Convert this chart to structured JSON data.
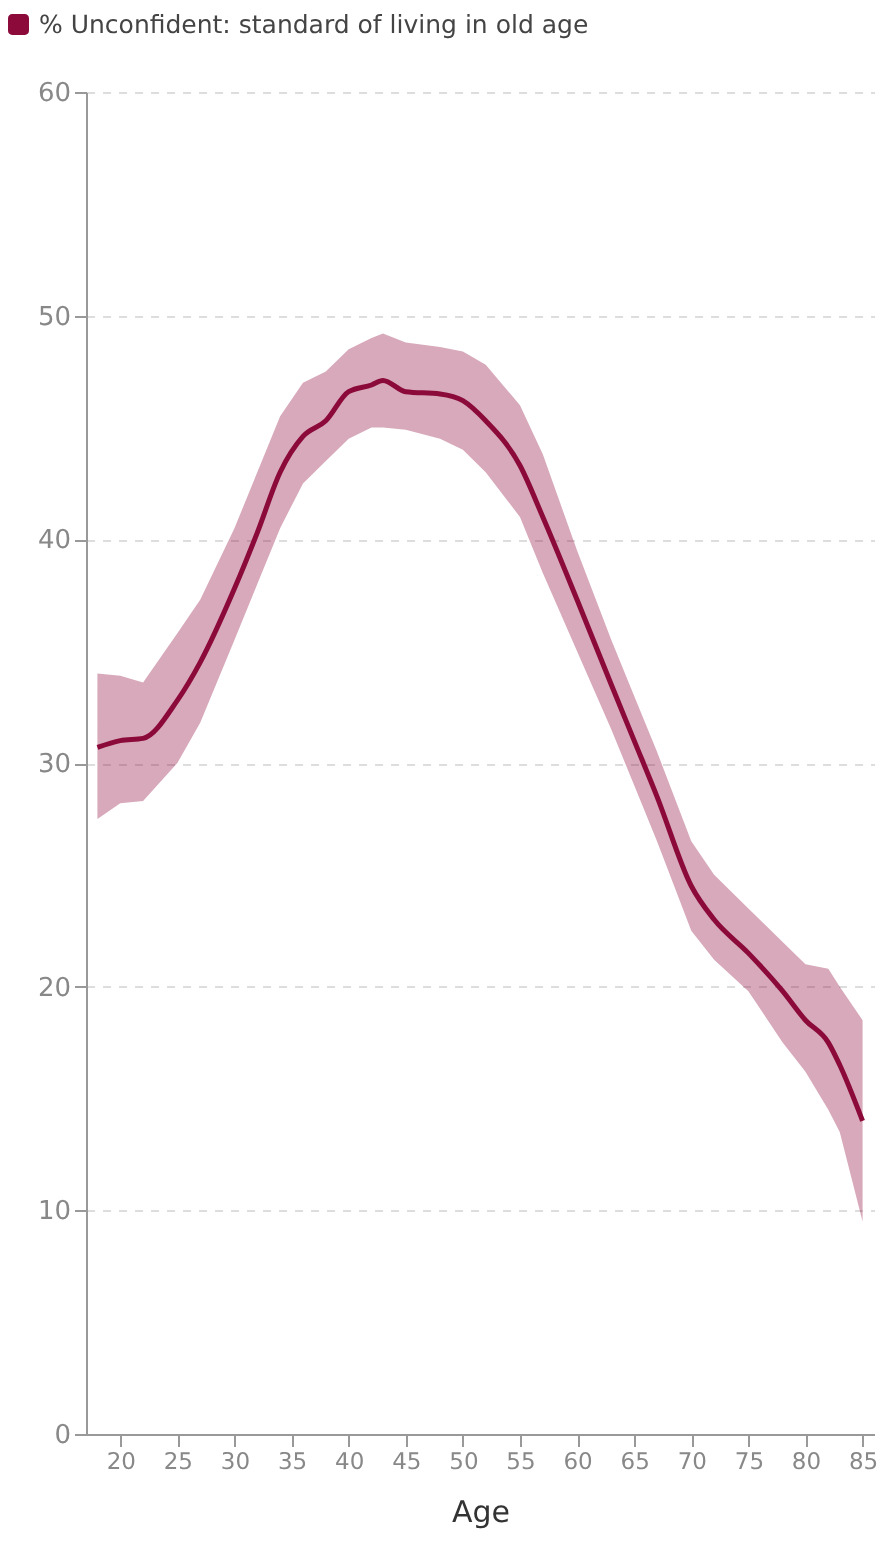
{
  "chart_data": {
    "type": "line",
    "xlabel": "Age",
    "legend": "top left",
    "grid": "y",
    "line_style": "solid",
    "xlim": [
      17,
      86
    ],
    "xticks": [
      20,
      25,
      30,
      35,
      40,
      45,
      50,
      55,
      60,
      65,
      70,
      75,
      80,
      85
    ],
    "ylim": [
      0,
      60
    ],
    "yticks": [
      0,
      10,
      20,
      30,
      40,
      50,
      60
    ],
    "x": [
      18,
      20,
      22,
      25,
      27,
      30,
      32,
      34,
      36,
      38,
      40,
      42,
      43,
      45,
      48,
      50,
      52,
      55,
      57,
      60,
      63,
      65,
      67,
      70,
      72,
      75,
      78,
      80,
      82,
      83,
      85
    ],
    "series": [
      {
        "name": "% Unconfident: standard of living in old age",
        "color": "#8b0a3a",
        "values": [
          30.7,
          31.0,
          31.1,
          32.8,
          34.5,
          37.8,
          40.3,
          43.0,
          44.6,
          45.3,
          46.6,
          46.9,
          47.1,
          46.6,
          46.5,
          46.2,
          45.3,
          43.3,
          41.0,
          37.3,
          33.5,
          31.0,
          28.5,
          24.5,
          23.0,
          21.5,
          19.8,
          18.5,
          17.5,
          16.5,
          14.0
        ],
        "upper": [
          34.0,
          33.9,
          33.6,
          35.8,
          37.3,
          40.5,
          43.0,
          45.5,
          47.0,
          47.5,
          48.5,
          49.0,
          49.2,
          48.8,
          48.6,
          48.4,
          47.8,
          46.0,
          43.8,
          39.5,
          35.5,
          33.0,
          30.5,
          26.5,
          25.0,
          23.5,
          22.0,
          21.0,
          20.8,
          20.0,
          18.5
        ],
        "lower": [
          27.5,
          28.2,
          28.3,
          30.0,
          31.8,
          35.5,
          38.0,
          40.5,
          42.5,
          43.5,
          44.5,
          45.0,
          45.0,
          44.9,
          44.5,
          44.0,
          43.0,
          41.0,
          38.5,
          35.0,
          31.5,
          29.0,
          26.5,
          22.5,
          21.2,
          19.8,
          17.5,
          16.2,
          14.5,
          13.5,
          9.5
        ]
      }
    ]
  }
}
